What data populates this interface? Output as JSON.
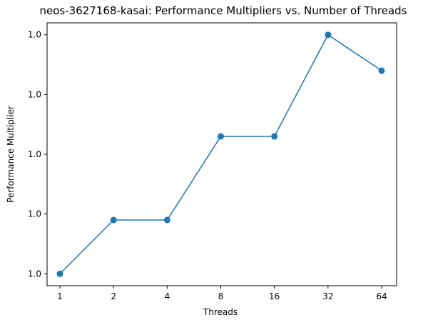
{
  "chart_data": {
    "type": "line",
    "title": "neos-3627168-kasai: Performance Multipliers vs. Number of Threads",
    "xlabel": "Threads",
    "ylabel": "Performance Multiplier",
    "categories": [
      "1",
      "2",
      "4",
      "8",
      "16",
      "32",
      "64"
    ],
    "series": [
      {
        "values": [
          1.0,
          1.0009,
          1.0009,
          1.0023,
          1.0023,
          1.004,
          1.0034
        ],
        "color": "#1f77b4",
        "marker": "circle"
      }
    ],
    "ylim": [
      0.9998,
      1.0042
    ],
    "yticks": [
      1.0,
      1.001,
      1.002,
      1.003,
      1.004
    ],
    "ytick_labels": [
      "1.0",
      "1.0",
      "1.0",
      "1.0",
      "1.0"
    ],
    "grid": false,
    "legend": "none"
  }
}
